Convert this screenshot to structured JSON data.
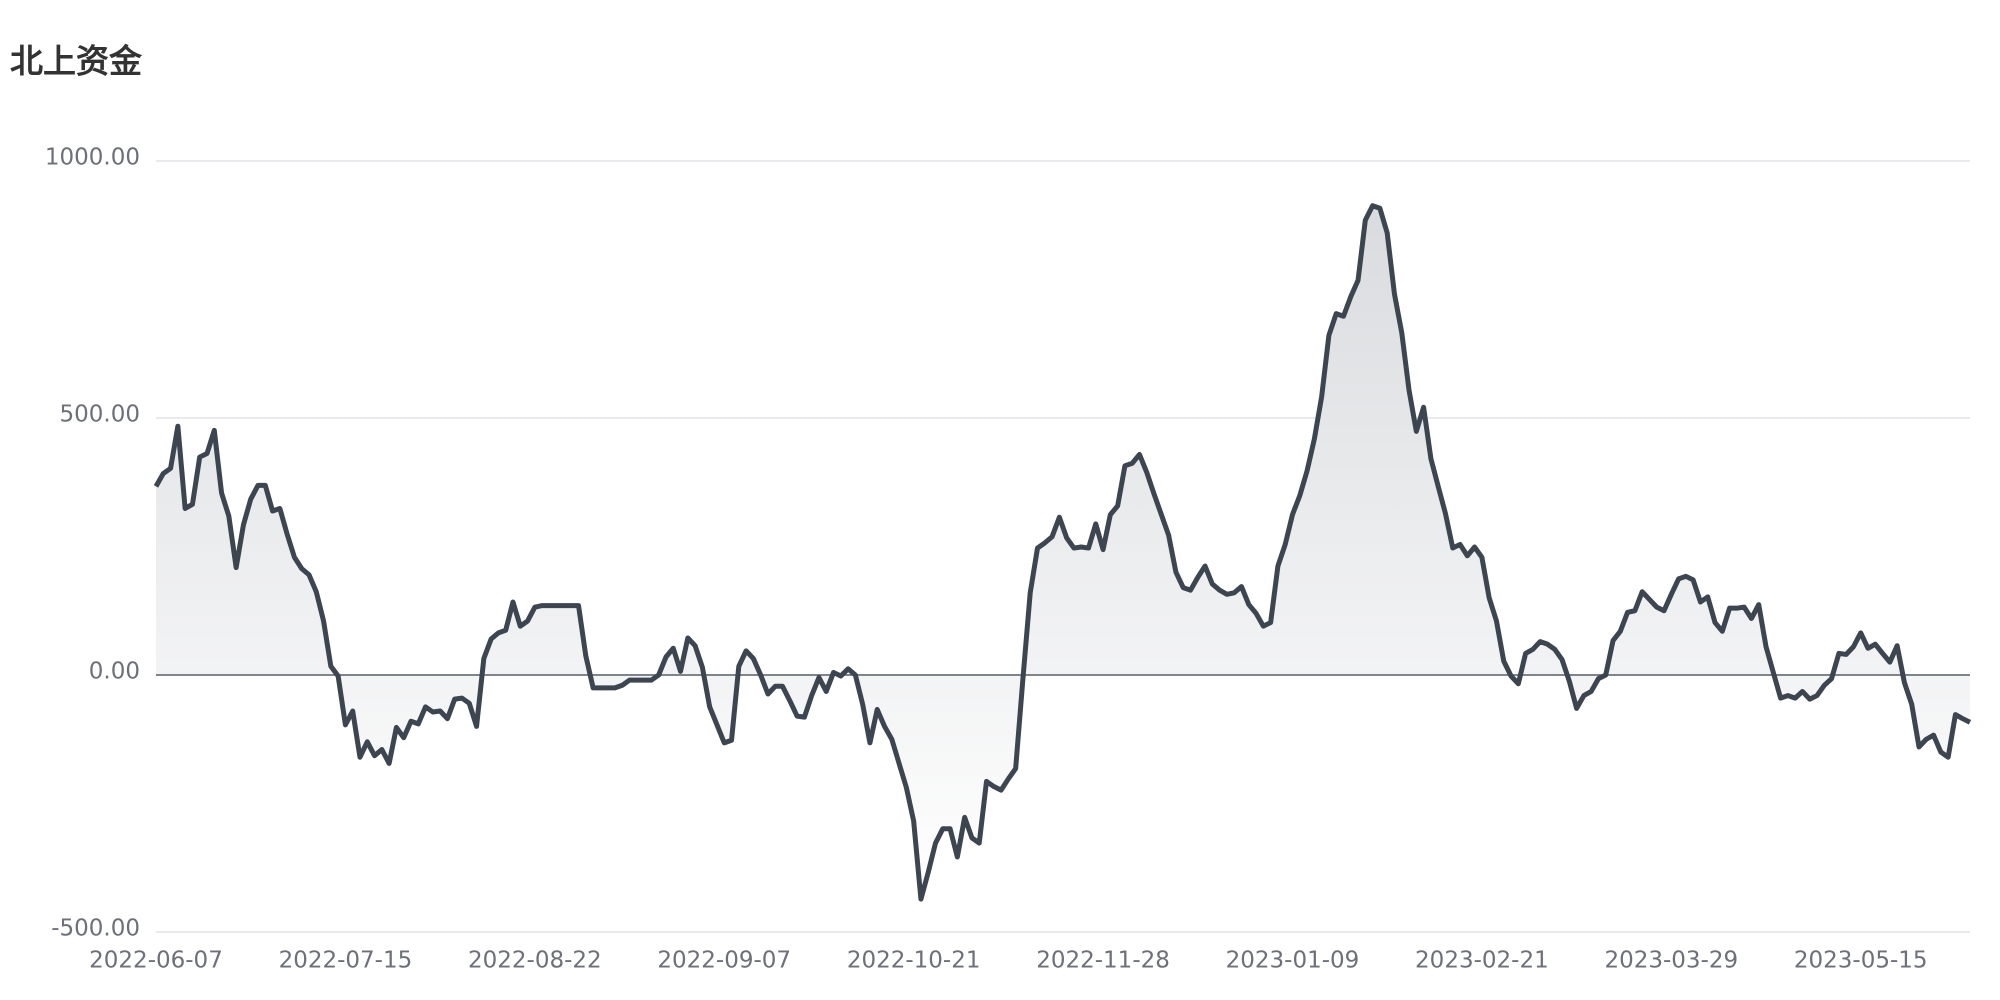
{
  "chart_data": {
    "type": "line",
    "title": "北上资金",
    "color": "#3d4550",
    "grid": true,
    "area": true,
    "categories": [
      "2022-06-07",
      null,
      null,
      null,
      null,
      null,
      null,
      null,
      null,
      null,
      null,
      null,
      null,
      null,
      null,
      null,
      null,
      null,
      null,
      null,
      null,
      null,
      null,
      null,
      null,
      null,
      "2022-07-15",
      null,
      null,
      null,
      null,
      null,
      null,
      null,
      null,
      null,
      null,
      null,
      null,
      null,
      null,
      null,
      null,
      null,
      null,
      null,
      null,
      null,
      null,
      null,
      null,
      null,
      "2022-08-22",
      null,
      null,
      null,
      null,
      null,
      null,
      null,
      null,
      null,
      null,
      null,
      null,
      null,
      null,
      null,
      null,
      null,
      null,
      null,
      null,
      null,
      null,
      null,
      null,
      null,
      "2022-09-07",
      null,
      null,
      null,
      null,
      null,
      null,
      null,
      null,
      null,
      null,
      null,
      null,
      null,
      null,
      null,
      null,
      null,
      null,
      null,
      null,
      null,
      null,
      null,
      null,
      null,
      "2022-10-21",
      null,
      null,
      null,
      null,
      null,
      null,
      null,
      null,
      null,
      null,
      null,
      null,
      null,
      null,
      null,
      null,
      null,
      null,
      null,
      null,
      null,
      null,
      null,
      null,
      null,
      "2022-11-28",
      null,
      null,
      null,
      null,
      null,
      null,
      null,
      null,
      null,
      null,
      null,
      null,
      null,
      null,
      null,
      null,
      null,
      null,
      null,
      null,
      null,
      null,
      null,
      null,
      null,
      "2023-01-09",
      null,
      null,
      null,
      null,
      null,
      null,
      null,
      null,
      null,
      null,
      null,
      null,
      null,
      null,
      null,
      null,
      null,
      null,
      null,
      null,
      null,
      null,
      null,
      null,
      null,
      "2023-02-21",
      null,
      null,
      null,
      null,
      null,
      null,
      null,
      null,
      null,
      null,
      null,
      null,
      null,
      null,
      null,
      null,
      null,
      null,
      null,
      null,
      null,
      null,
      null,
      null,
      null,
      "2023-03-29",
      null,
      null,
      null,
      null,
      null,
      null,
      null,
      null,
      null,
      null,
      null,
      null,
      null,
      null,
      null,
      null,
      null,
      null,
      null,
      null,
      null,
      null,
      null,
      null,
      null,
      "2023-05-15",
      null,
      null,
      null,
      null,
      null,
      null,
      null,
      null,
      null,
      null,
      null,
      null,
      null,
      null,
      null
    ],
    "values": [
      367,
      392,
      402,
      484,
      324,
      332,
      424,
      431,
      476,
      354,
      309,
      209,
      292,
      342,
      369,
      369,
      319,
      324,
      274,
      229,
      207,
      195,
      162,
      105,
      17,
      -2,
      -97,
      -70,
      -160,
      -130,
      -157,
      -145,
      -172,
      -102,
      -122,
      -90,
      -95,
      -62,
      -72,
      -70,
      -85,
      -47,
      -45,
      -55,
      -100,
      32,
      70,
      82,
      87,
      142,
      95,
      105,
      132,
      135,
      135,
      135,
      135,
      135,
      135,
      37,
      -25,
      -25,
      -25,
      -25,
      -20,
      -10,
      -10,
      -10,
      -10,
      0,
      35,
      52,
      7,
      72,
      57,
      15,
      -62,
      -97,
      -132,
      -127,
      17,
      47,
      32,
      0,
      -37,
      -22,
      -22,
      -50,
      -80,
      -82,
      -40,
      -5,
      -32,
      5,
      -2,
      12,
      0,
      -57,
      -132,
      -67,
      -100,
      -125,
      -172,
      -219,
      -284,
      -436,
      -384,
      -327,
      -299,
      -299,
      -354,
      -277,
      -317,
      -327,
      -207,
      -217,
      -224,
      -202,
      -182,
      -7,
      160,
      247,
      257,
      269,
      307,
      267,
      247,
      249,
      247,
      294,
      244,
      312,
      329,
      407,
      412,
      429,
      394,
      352,
      312,
      272,
      200,
      170,
      165,
      190,
      212,
      177,
      165,
      157,
      160,
      172,
      137,
      120,
      95,
      102,
      212,
      254,
      312,
      349,
      397,
      459,
      541,
      661,
      703,
      698,
      736,
      768,
      885,
      913,
      908,
      860,
      741,
      666,
      554,
      474,
      521,
      421,
      367,
      314,
      247,
      254,
      232,
      249,
      229,
      150,
      105,
      27,
      -2,
      -17,
      42,
      50,
      65,
      60,
      50,
      30,
      -12,
      -65,
      -40,
      -32,
      -7,
      0,
      67,
      85,
      122,
      125,
      162,
      147,
      132,
      125,
      157,
      187,
      192,
      185,
      142,
      152,
      102,
      85,
      130,
      130,
      132,
      110,
      137,
      55,
      5,
      -45,
      -40,
      -45,
      -32,
      -47,
      -40,
      -20,
      -7,
      42,
      40,
      55,
      82,
      52,
      60,
      42,
      25,
      57,
      -15,
      -57,
      -140,
      -125,
      -117,
      -150,
      -160,
      -77,
      -85,
      -92
    ],
    "ylim": [
      -500,
      1000
    ],
    "yticks": [
      {
        "value": -500,
        "label": "-500.00"
      },
      {
        "value": 0,
        "label": "0.00"
      },
      {
        "value": 500,
        "label": "500.00"
      },
      {
        "value": 1000,
        "label": "1000.00"
      }
    ]
  }
}
